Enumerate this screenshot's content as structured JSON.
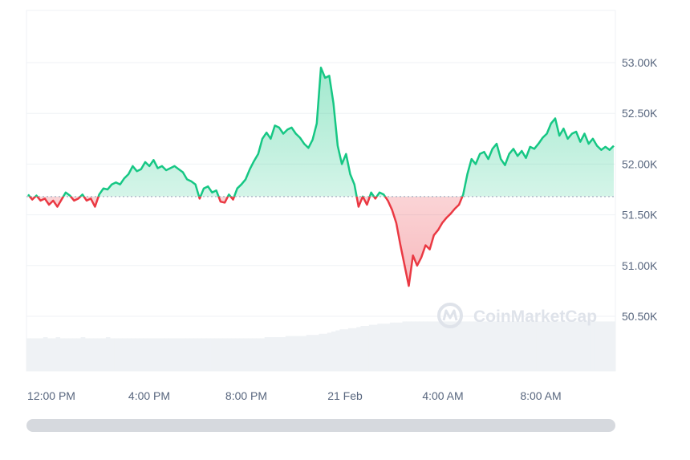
{
  "chart_data": {
    "type": "line",
    "title": "",
    "xlabel": "",
    "ylabel": "",
    "ylim": [
      50000,
      53300
    ],
    "y_ticks": [
      {
        "value": 53000,
        "label": "53.00K"
      },
      {
        "value": 52500,
        "label": "52.50K"
      },
      {
        "value": 52000,
        "label": "52.00K"
      },
      {
        "value": 51500,
        "label": "51.50K"
      },
      {
        "value": 51000,
        "label": "51.00K"
      },
      {
        "value": 50500,
        "label": "50.50K"
      }
    ],
    "x_ticks": [
      "12:00 PM",
      "4:00 PM",
      "8:00 PM",
      "21 Feb",
      "4:00 AM",
      "8:00 AM"
    ],
    "baseline": 51680,
    "colors": {
      "up": "#16c784",
      "down": "#ea3943",
      "baseline": "#a6b0c3",
      "grid": "#eff2f5",
      "volume": "#eff2f5"
    },
    "grid": true,
    "series": [
      {
        "values": [
          51700,
          51650,
          51690,
          51640,
          51660,
          51600,
          51640,
          51580,
          51650,
          51720,
          51690,
          51640,
          51660,
          51700,
          51640,
          51660,
          51580,
          51700,
          51760,
          51750,
          51800,
          51820,
          51800,
          51860,
          51900,
          51980,
          51930,
          51950,
          52020,
          51980,
          52040,
          51960,
          51980,
          51940,
          51960,
          51980,
          51950,
          51920,
          51850,
          51830,
          51800,
          51660,
          51760,
          51780,
          51720,
          51740,
          51630,
          51620,
          51700,
          51650,
          51760,
          51800,
          51850,
          51950,
          52030,
          52100,
          52250,
          52310,
          52250,
          52380,
          52360,
          52300,
          52340,
          52360,
          52300,
          52260,
          52200,
          52160,
          52240,
          52400,
          52950,
          52850,
          52870,
          52600,
          52180,
          52000,
          52100,
          51900,
          51800,
          51580,
          51680,
          51600,
          51720,
          51660,
          51720,
          51700,
          51640,
          51550,
          51420,
          51200,
          51000,
          50800,
          51100,
          51000,
          51080,
          51200,
          51160,
          51300,
          51350,
          51420,
          51470,
          51510,
          51560,
          51600,
          51700,
          51900,
          52050,
          52000,
          52100,
          52120,
          52050,
          52150,
          52200,
          52050,
          51990,
          52100,
          52150,
          52080,
          52130,
          52060,
          52170,
          52150,
          52200,
          52260,
          52300,
          52400,
          52450,
          52280,
          52350,
          52250,
          52300,
          52320,
          52220,
          52300,
          52200,
          52250,
          52180,
          52140,
          52170,
          52140,
          52180
        ],
        "volume": [
          0.29,
          0.29,
          0.29,
          0.29,
          0.3,
          0.29,
          0.29,
          0.3,
          0.29,
          0.29,
          0.29,
          0.29,
          0.29,
          0.3,
          0.29,
          0.29,
          0.29,
          0.29,
          0.29,
          0.3,
          0.29,
          0.29,
          0.29,
          0.29,
          0.29,
          0.29,
          0.29,
          0.29,
          0.29,
          0.29,
          0.29,
          0.29,
          0.29,
          0.29,
          0.29,
          0.29,
          0.29,
          0.29,
          0.29,
          0.29,
          0.29,
          0.29,
          0.29,
          0.29,
          0.29,
          0.29,
          0.29,
          0.29,
          0.29,
          0.29,
          0.29,
          0.29,
          0.29,
          0.29,
          0.29,
          0.29,
          0.29,
          0.3,
          0.3,
          0.3,
          0.3,
          0.3,
          0.31,
          0.31,
          0.31,
          0.31,
          0.31,
          0.32,
          0.32,
          0.32,
          0.33,
          0.33,
          0.34,
          0.35,
          0.36,
          0.37,
          0.37,
          0.38,
          0.38,
          0.39,
          0.4,
          0.4,
          0.41,
          0.41,
          0.42,
          0.42,
          0.42,
          0.43,
          0.43,
          0.43,
          0.44,
          0.44,
          0.44,
          0.44,
          0.44,
          0.44,
          0.44,
          0.44,
          0.44,
          0.44,
          0.44,
          0.44,
          0.44,
          0.44,
          0.44,
          0.44,
          0.44,
          0.44,
          0.44,
          0.44,
          0.44,
          0.44,
          0.44,
          0.44,
          0.44,
          0.44,
          0.44,
          0.44,
          0.44,
          0.44,
          0.44,
          0.44,
          0.44,
          0.44,
          0.44,
          0.44,
          0.44,
          0.44,
          0.44,
          0.44,
          0.44,
          0.44,
          0.44,
          0.44,
          0.44,
          0.44,
          0.44,
          0.44,
          0.44,
          0.44,
          0.44
        ]
      }
    ]
  },
  "watermark": {
    "text": "CoinMarketCap",
    "icon": "coinmarketcap-logo-icon"
  }
}
